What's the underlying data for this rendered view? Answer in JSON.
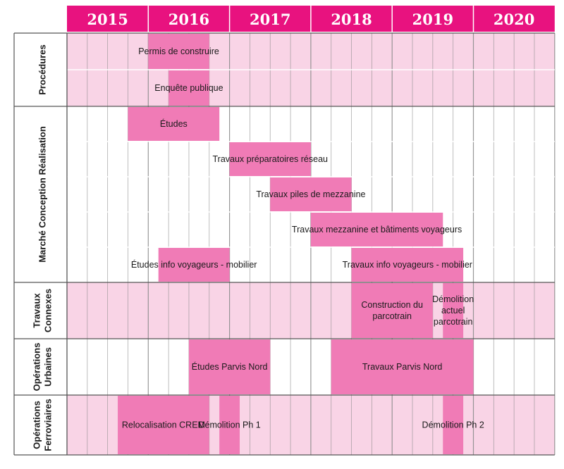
{
  "chart_data": {
    "type": "gantt",
    "time_unit": "quarter",
    "start_year": 2015,
    "years": [
      "2015",
      "2016",
      "2017",
      "2018",
      "2019",
      "2020"
    ],
    "colors": {
      "header": "#e8127f",
      "bar": "#f07bb6",
      "band": "#f9d4e6",
      "plain": "#ffffff",
      "grid": "#8c8c8c",
      "text": "#1a1a1a"
    },
    "groups": [
      {
        "name": "Procédures",
        "band": true,
        "rows": [
          [
            {
              "label": "Permis de construire",
              "start": 2016.0,
              "end": 2016.75
            }
          ],
          [
            {
              "label": "Enquête publique",
              "start": 2016.25,
              "end": 2016.75
            }
          ]
        ]
      },
      {
        "name": "Marché Conception Réalisation",
        "band": false,
        "rows": [
          [
            {
              "label": "Études",
              "start": 2015.75,
              "end": 2016.875
            }
          ],
          [
            {
              "label": "Travaux préparatoires réseau",
              "start": 2017.0,
              "end": 2018.0
            }
          ],
          [
            {
              "label": "Travaux piles de mezzanine",
              "start": 2017.5,
              "end": 2018.5
            }
          ],
          [
            {
              "label": "Travaux mezzanine et bâtiments voyageurs",
              "start": 2018.0,
              "end": 2019.625
            }
          ],
          [
            {
              "label": "Études info voyageurs - mobilier",
              "start": 2016.125,
              "end": 2017.0
            },
            {
              "label": "Travaux info voyageurs - mobilier",
              "start": 2018.5,
              "end": 2019.875
            }
          ]
        ]
      },
      {
        "name": "Travaux Connexes",
        "band": true,
        "rows": [
          [
            {
              "label": "Construction du parcotrain",
              "start": 2018.5,
              "end": 2019.5
            },
            {
              "label": "Démolition actuel parcotrain",
              "start": 2019.625,
              "end": 2019.875
            }
          ]
        ]
      },
      {
        "name": "Opérations Urbaines",
        "band": false,
        "rows": [
          [
            {
              "label": "Études Parvis Nord",
              "start": 2016.5,
              "end": 2017.5
            },
            {
              "label": "Travaux Parvis Nord",
              "start": 2018.25,
              "end": 2020.0
            }
          ]
        ]
      },
      {
        "name": "Opérations Ferroviaires",
        "band": true,
        "rows": [
          [
            {
              "label": "Relocalisation CREM",
              "start": 2015.625,
              "end": 2016.75
            },
            {
              "label": "Démolition Ph 1",
              "start": 2016.875,
              "end": 2017.125
            },
            {
              "label": "Démolition Ph 2",
              "start": 2019.625,
              "end": 2019.875
            }
          ]
        ]
      }
    ]
  }
}
